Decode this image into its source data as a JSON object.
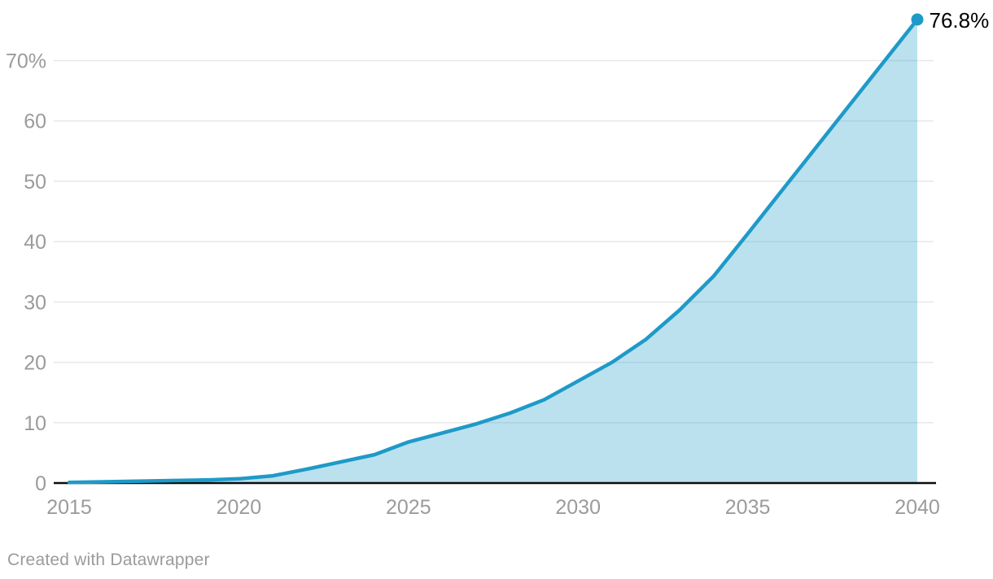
{
  "chart_data": {
    "type": "area",
    "title": "",
    "xlabel": "",
    "ylabel": "",
    "unit": "%",
    "x": [
      2015,
      2016,
      2017,
      2018,
      2019,
      2020,
      2021,
      2022,
      2023,
      2024,
      2025,
      2026,
      2027,
      2028,
      2029,
      2030,
      2031,
      2032,
      2033,
      2034,
      2035,
      2036,
      2037,
      2038,
      2039,
      2040
    ],
    "values": [
      0.1,
      0.2,
      0.3,
      0.4,
      0.5,
      0.7,
      1.2,
      2.3,
      3.5,
      4.7,
      6.8,
      8.3,
      9.8,
      11.6,
      13.8,
      16.9,
      20.0,
      23.8,
      28.7,
      34.3,
      41.3,
      48.4,
      55.5,
      62.6,
      69.7,
      76.8
    ],
    "end_label": "76.8%",
    "xlim": [
      2015,
      2040
    ],
    "ylim": [
      0,
      76.8
    ],
    "x_ticks": [
      2015,
      2020,
      2025,
      2030,
      2035,
      2040
    ],
    "x_tick_labels": [
      "2015",
      "2020",
      "2025",
      "2030",
      "2035",
      "2040"
    ],
    "y_ticks": [
      0,
      10,
      20,
      30,
      40,
      50,
      60,
      70
    ],
    "y_tick_labels": [
      "0",
      "10",
      "20",
      "30",
      "40",
      "50",
      "60",
      "70%"
    ],
    "grid": true,
    "legend": "none",
    "colors": {
      "line": "#1e9ac8",
      "area_fill": "rgba(30, 154, 200, 0.3)",
      "marker": "#1e9ac8",
      "gridline": "#e8e8e8",
      "baseline": "#0b0b0b",
      "axis_text": "#9b9b9b",
      "end_label_text": "#000000"
    }
  },
  "footer": {
    "text": "Created with Datawrapper"
  }
}
